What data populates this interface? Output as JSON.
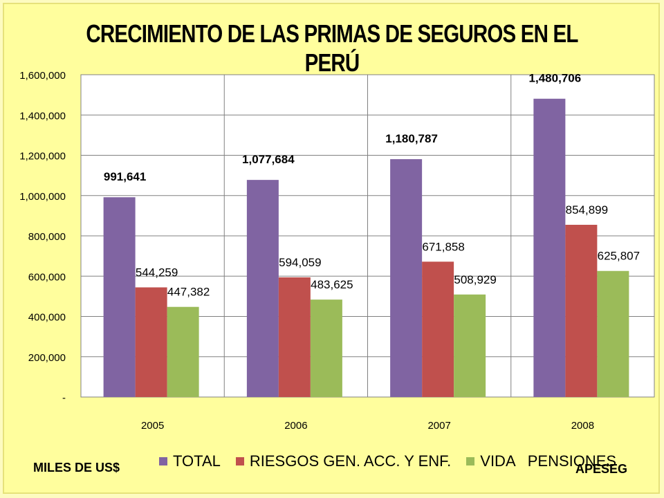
{
  "title": "CRECIMIENTO DE LAS PRIMAS DE SEGUROS EN EL PERÚ",
  "unit_note": "MILES DE US$",
  "source_note": "APESEG",
  "colors": {
    "page_background": "#fffe9d",
    "plot_background": "#ffffff",
    "total": "#8064a2",
    "riesgos": "#c0504d",
    "vida": "#9bbb59"
  },
  "chart_data": {
    "type": "bar",
    "categories": [
      "2005",
      "2006",
      "2007",
      "2008"
    ],
    "series": [
      {
        "name": "TOTAL",
        "values": [
          991641,
          1077684,
          1180787,
          1480706
        ],
        "labels": [
          "991,641",
          "1,077,684",
          "1,180,787",
          "1,480,706"
        ],
        "bold_labels": true
      },
      {
        "name": "RIESGOS GEN. ACC. Y ENF.",
        "values": [
          544259,
          594059,
          671858,
          854899
        ],
        "labels": [
          "544,259",
          "594,059",
          "671,858",
          "854,899"
        ],
        "bold_labels": false
      },
      {
        "name": "VIDA   PENSIONES",
        "values": [
          447382,
          483625,
          508929,
          625807
        ],
        "labels": [
          "447,382",
          "483,625",
          "508,929",
          "625,807"
        ],
        "bold_labels": false
      }
    ],
    "ylim": [
      0,
      1600000
    ],
    "y_ticks": [
      0,
      200000,
      400000,
      600000,
      800000,
      1000000,
      1200000,
      1400000,
      1600000
    ],
    "y_tick_labels": [
      "-",
      "200,000",
      "400,000",
      "600,000",
      "800,000",
      "1,000,000",
      "1,200,000",
      "1,400,000",
      "1,600,000"
    ],
    "grid": true,
    "legend_position": "bottom"
  }
}
